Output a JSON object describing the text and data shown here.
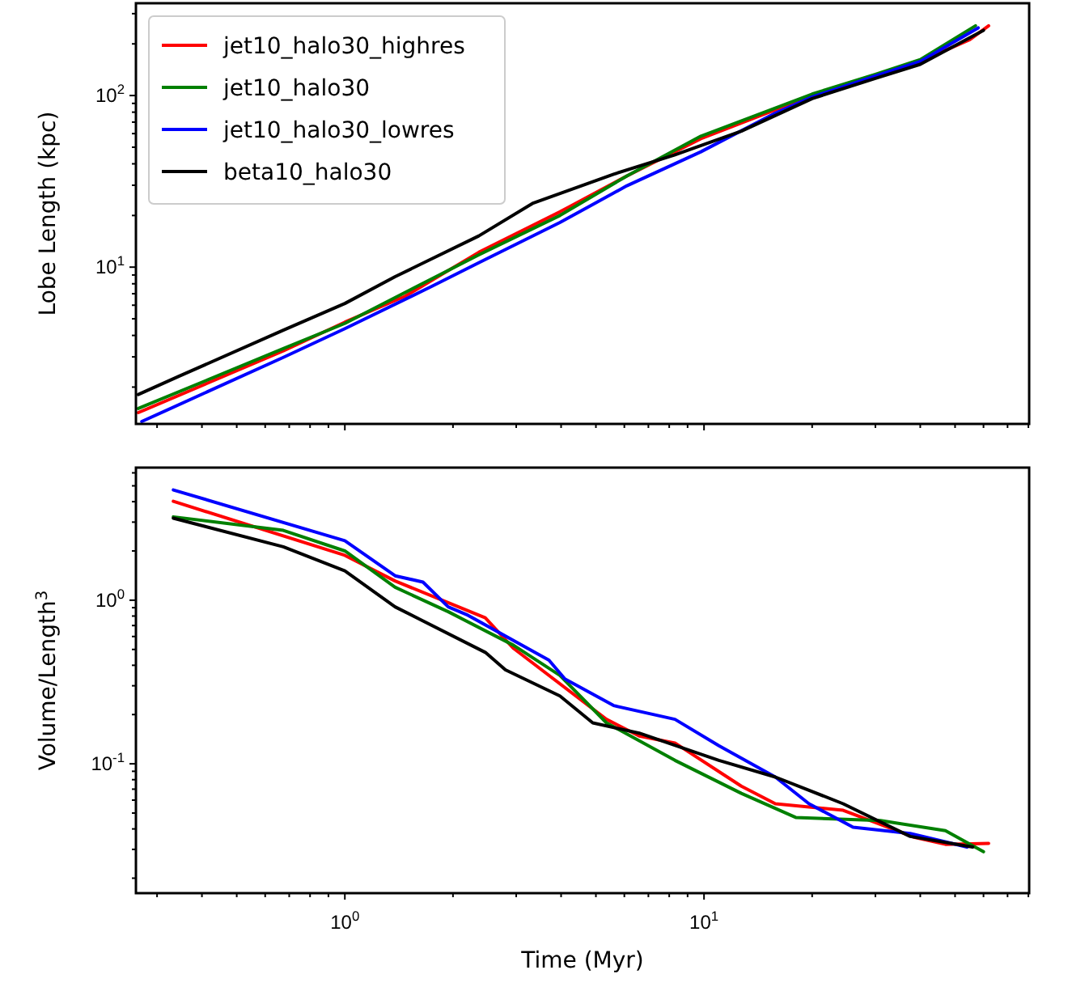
{
  "chart_data": [
    {
      "type": "line",
      "ylabel": "Lobe Length (kpc)",
      "log": "xy",
      "legend": "top left",
      "tick_labels": "y",
      "xlim": [
        0.262,
        80.4
      ],
      "ylim": [
        1.22,
        345
      ],
      "xticks": [
        {
          "value": 0.3,
          "label": null
        },
        {
          "value": 0.4,
          "label": null
        },
        {
          "value": 0.5,
          "label": null
        },
        {
          "value": 0.6,
          "label": null
        },
        {
          "value": 0.7,
          "label": null
        },
        {
          "value": 0.8,
          "label": null
        },
        {
          "value": 0.9,
          "label": null
        },
        1,
        {
          "value": 2,
          "label": null
        },
        {
          "value": 3,
          "label": null
        },
        {
          "value": 4,
          "label": null
        },
        {
          "value": 5,
          "label": null
        },
        {
          "value": 6,
          "label": null
        },
        {
          "value": 7,
          "label": null
        },
        {
          "value": 8,
          "label": null
        },
        {
          "value": 9,
          "label": null
        },
        10,
        {
          "value": 20,
          "label": null
        },
        {
          "value": 30,
          "label": null
        },
        {
          "value": 40,
          "label": null
        },
        {
          "value": 50,
          "label": null
        },
        {
          "value": 60,
          "label": null
        },
        {
          "value": 70,
          "label": null
        },
        {
          "value": 80,
          "label": null
        }
      ],
      "yticks": [
        {
          "value": 2,
          "label": null
        },
        {
          "value": 3,
          "label": null
        },
        {
          "value": 4,
          "label": null
        },
        {
          "value": 5,
          "label": null
        },
        {
          "value": 6,
          "label": null
        },
        {
          "value": 7,
          "label": null
        },
        {
          "value": 8,
          "label": null
        },
        {
          "value": 9,
          "label": null
        },
        {
          "value": 10,
          "label": "10$^{1}$"
        },
        {
          "value": 20,
          "label": null
        },
        {
          "value": 30,
          "label": null
        },
        {
          "value": 40,
          "label": null
        },
        {
          "value": 50,
          "label": null
        },
        {
          "value": 60,
          "label": null
        },
        {
          "value": 70,
          "label": null
        },
        {
          "value": 80,
          "label": null
        },
        {
          "value": 90,
          "label": null
        },
        {
          "value": 100,
          "label": "10$^{2}$"
        },
        {
          "value": 200,
          "label": null
        },
        {
          "value": 300,
          "label": null
        }
      ],
      "series": [
        {
          "name": "jet10_halo30_highres",
          "color": "#ff0000",
          "x": [
            0.266,
            0.674,
            1.0,
            1.47,
            2.36,
            3.97,
            6.1,
            9.8,
            20,
            30,
            40,
            55,
            62
          ],
          "values": [
            1.42,
            3.25,
            4.78,
            6.76,
            12.2,
            21,
            34,
            56,
            100,
            131,
            158,
            212,
            255
          ]
        },
        {
          "name": "jet10_halo30",
          "color": "#008000",
          "x": [
            0.266,
            0.674,
            1.0,
            2.36,
            3.97,
            6.1,
            9.8,
            20,
            30,
            40,
            57
          ],
          "values": [
            1.5,
            3.35,
            4.7,
            11.8,
            20,
            34,
            58,
            102,
            133,
            162,
            255
          ]
        },
        {
          "name": "jet10_halo30_lowres",
          "color": "#0000ff",
          "x": [
            0.272,
            0.674,
            1.0,
            1.74,
            2.36,
            3.97,
            6.1,
            9.8,
            15.8,
            20,
            30,
            40,
            58
          ],
          "values": [
            1.26,
            2.98,
            4.38,
            7.7,
            10.6,
            18.2,
            29.8,
            47,
            79,
            98,
            130,
            158,
            248
          ]
        },
        {
          "name": "beta10_halo30",
          "color": "#000000",
          "x": [
            0.266,
            0.345,
            0.674,
            1.0,
            1.38,
            2.36,
            3.33,
            5.6,
            8.27,
            12.7,
            20,
            30,
            40,
            60
          ],
          "values": [
            1.81,
            2.31,
            4.29,
            6.14,
            8.8,
            15.2,
            23.5,
            34.8,
            45,
            62,
            96,
            126,
            152,
            240
          ]
        }
      ]
    },
    {
      "type": "line",
      "xlabel": "Time (Myr)",
      "ylabel": "Volume/Length$^{3}$",
      "log": "xy",
      "xlim": [
        0.262,
        80.4
      ],
      "ylim": [
        0.0162,
        6.46
      ],
      "xticks": [
        {
          "value": 0.3,
          "label": null
        },
        {
          "value": 0.4,
          "label": null
        },
        {
          "value": 0.5,
          "label": null
        },
        {
          "value": 0.6,
          "label": null
        },
        {
          "value": 0.7,
          "label": null
        },
        {
          "value": 0.8,
          "label": null
        },
        {
          "value": 0.9,
          "label": null
        },
        {
          "value": 1,
          "label": "10$^{0}$"
        },
        {
          "value": 2,
          "label": null
        },
        {
          "value": 3,
          "label": null
        },
        {
          "value": 4,
          "label": null
        },
        {
          "value": 5,
          "label": null
        },
        {
          "value": 6,
          "label": null
        },
        {
          "value": 7,
          "label": null
        },
        {
          "value": 8,
          "label": null
        },
        {
          "value": 9,
          "label": null
        },
        {
          "value": 10,
          "label": "10$^{1}$"
        },
        {
          "value": 20,
          "label": null
        },
        {
          "value": 30,
          "label": null
        },
        {
          "value": 40,
          "label": null
        },
        {
          "value": 50,
          "label": null
        },
        {
          "value": 60,
          "label": null
        },
        {
          "value": 70,
          "label": null
        },
        {
          "value": 80,
          "label": null
        }
      ],
      "yticks": [
        {
          "value": 0.02,
          "label": null
        },
        {
          "value": 0.03,
          "label": null
        },
        {
          "value": 0.04,
          "label": null
        },
        {
          "value": 0.05,
          "label": null
        },
        {
          "value": 0.06,
          "label": null
        },
        {
          "value": 0.07,
          "label": null
        },
        {
          "value": 0.08,
          "label": null
        },
        {
          "value": 0.09,
          "label": null
        },
        {
          "value": 0.1,
          "label": "10$^{-1}$"
        },
        {
          "value": 0.2,
          "label": null
        },
        {
          "value": 0.3,
          "label": null
        },
        {
          "value": 0.4,
          "label": null
        },
        {
          "value": 0.5,
          "label": null
        },
        {
          "value": 0.6,
          "label": null
        },
        {
          "value": 0.7,
          "label": null
        },
        {
          "value": 0.8,
          "label": null
        },
        {
          "value": 0.9,
          "label": null
        },
        {
          "value": 1,
          "label": "10$^{0}$"
        },
        {
          "value": 2,
          "label": null
        },
        {
          "value": 3,
          "label": null
        },
        {
          "value": 4,
          "label": null
        },
        {
          "value": 5,
          "label": null
        },
        {
          "value": 6,
          "label": null
        }
      ],
      "series": [
        {
          "color": "#ff0000",
          "x": [
            0.333,
            1.0,
            1.38,
            2.46,
            2.95,
            5.35,
            6.6,
            8.3,
            12.7,
            15.8,
            24.4,
            38.6,
            47,
            62
          ],
          "values": [
            4.02,
            1.88,
            1.31,
            0.78,
            0.507,
            0.187,
            0.148,
            0.134,
            0.073,
            0.057,
            0.052,
            0.0355,
            0.0322,
            0.0326
          ]
        },
        {
          "color": "#008000",
          "x": [
            0.333,
            0.674,
            1.0,
            1.38,
            1.94,
            2.95,
            3.97,
            5.35,
            8.3,
            12.7,
            18,
            31,
            47,
            60
          ],
          "values": [
            3.23,
            2.67,
            2.0,
            1.2,
            0.85,
            0.53,
            0.347,
            0.178,
            0.105,
            0.066,
            0.047,
            0.045,
            0.039,
            0.029
          ]
        },
        {
          "color": "#0000ff",
          "x": [
            0.333,
            1.0,
            1.38,
            1.65,
            1.94,
            2.2,
            3.7,
            4.1,
            5.6,
            8.3,
            11,
            15.8,
            19.6,
            26,
            37.5,
            54
          ],
          "values": [
            4.72,
            2.31,
            1.41,
            1.29,
            0.91,
            0.81,
            0.43,
            0.33,
            0.227,
            0.187,
            0.129,
            0.083,
            0.057,
            0.041,
            0.0375,
            0.031
          ]
        },
        {
          "color": "#000000",
          "x": [
            0.333,
            0.674,
            1.0,
            1.38,
            2.46,
            2.8,
            3.97,
            4.9,
            6.6,
            11,
            15.8,
            24.4,
            37.5,
            56
          ],
          "values": [
            3.17,
            2.12,
            1.51,
            0.91,
            0.48,
            0.375,
            0.26,
            0.178,
            0.154,
            0.105,
            0.083,
            0.057,
            0.036,
            0.031
          ]
        }
      ]
    }
  ]
}
